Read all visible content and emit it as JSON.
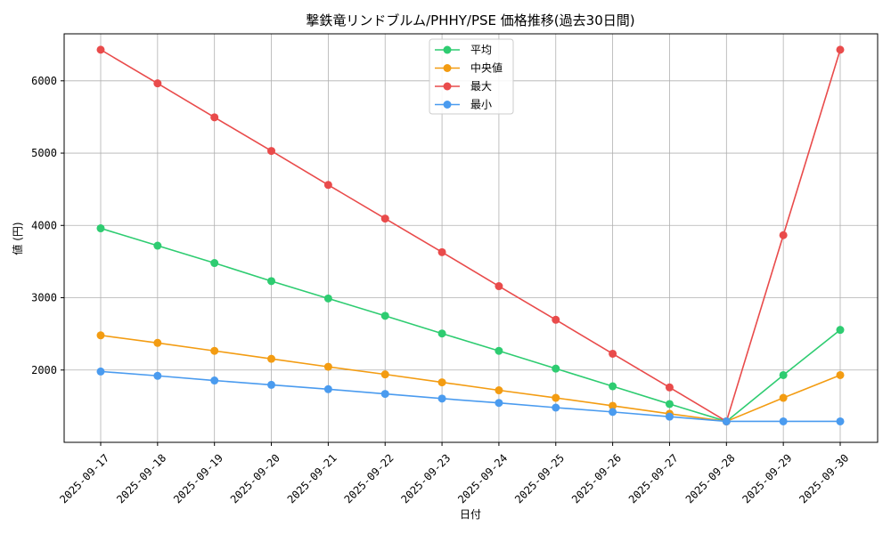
{
  "chart_data": {
    "type": "line",
    "title": "撃鉄竜リンドブルム/PHHY/PSE 価格推移(過去30日間)",
    "xlabel": "日付",
    "ylabel": "値 (円)",
    "categories": [
      "2025-09-17",
      "2025-09-18",
      "2025-09-19",
      "2025-09-20",
      "2025-09-21",
      "2025-09-22",
      "2025-09-23",
      "2025-09-24",
      "2025-09-25",
      "2025-09-26",
      "2025-09-27",
      "2025-09-28",
      "2025-09-29",
      "2025-09-30"
    ],
    "ylim": [
      1000,
      6650
    ],
    "yticks": [
      2000,
      3000,
      4000,
      5000,
      6000
    ],
    "grid": true,
    "legend_position": "upper-center",
    "series": [
      {
        "name": "平均",
        "color": "#2ecc71",
        "values": [
          3960,
          3720,
          3480,
          3230,
          2990,
          2750,
          2505,
          2265,
          2020,
          1775,
          1530,
          1290,
          1930,
          2555
        ]
      },
      {
        "name": "中央値",
        "color": "#f39c12",
        "values": [
          2480,
          2375,
          2265,
          2155,
          2045,
          1940,
          1830,
          1720,
          1615,
          1505,
          1395,
          1290,
          1615,
          1930
        ]
      },
      {
        "name": "最大",
        "color": "#e94b4b",
        "values": [
          6430,
          5965,
          5495,
          5030,
          4560,
          4095,
          3630,
          3160,
          2695,
          2225,
          1760,
          1290,
          3865,
          6430
        ]
      },
      {
        "name": "最小",
        "color": "#4a9bef",
        "values": [
          1980,
          1920,
          1855,
          1795,
          1735,
          1670,
          1605,
          1545,
          1480,
          1420,
          1355,
          1290,
          1290,
          1290
        ]
      }
    ]
  }
}
